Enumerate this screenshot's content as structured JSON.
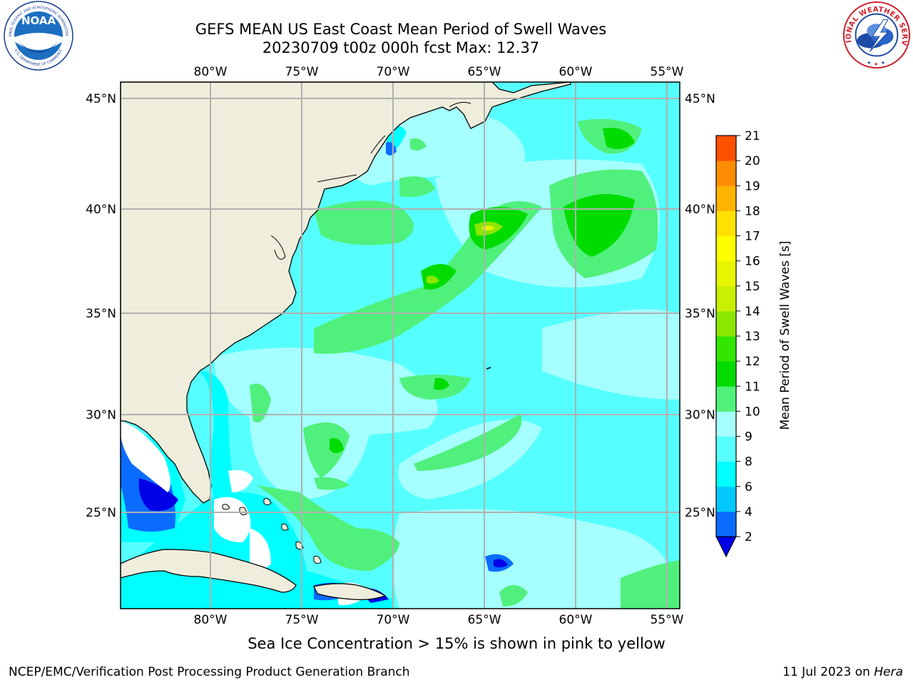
{
  "title_line1": "GEFS MEAN US East Coast Mean Period of Swell Waves",
  "title_line2": "20230709 t00z 000h fcst   Max: 12.37",
  "lon_labels": [
    "80°W",
    "75°W",
    "70°W",
    "65°W",
    "60°W",
    "55°W"
  ],
  "lat_labels": [
    "45°N",
    "40°N",
    "35°N",
    "30°N",
    "25°N"
  ],
  "colorbar": {
    "label": "Mean Period of Swell Waves [s]",
    "ticks": [
      "2",
      "4",
      "6",
      "8",
      "9",
      "10",
      "11",
      "12",
      "13",
      "14",
      "15",
      "16",
      "17",
      "18",
      "19",
      "20",
      "21"
    ],
    "colors": [
      "#0a6cff",
      "#00c8ff",
      "#00ffff",
      "#56ffff",
      "#a5ffff",
      "#50f07c",
      "#00dc00",
      "#32e600",
      "#8ce600",
      "#c8f000",
      "#e6f500",
      "#ffff00",
      "#ffe100",
      "#ffb400",
      "#ff8c00",
      "#ff5000",
      "#ff2000",
      "#ff0000"
    ],
    "under_color": "#0000e6"
  },
  "note": "Sea Ice Concentration > 15% is shown in pink to yellow",
  "footer_left": "NCEP/EMC/Verification Post Processing Product Generation Branch",
  "footer_date": "11 Jul 2023 on",
  "footer_host": "Hera",
  "logos": {
    "noaa_text": "NOAA",
    "noaa_ring_top": "NATIONAL OCEANIC AND ATMOSPHERIC ADMINISTRATION",
    "noaa_ring_bottom": "U.S. DEPARTMENT OF COMMERCE",
    "nws_ring": "NATIONAL WEATHER SERVICE"
  }
}
